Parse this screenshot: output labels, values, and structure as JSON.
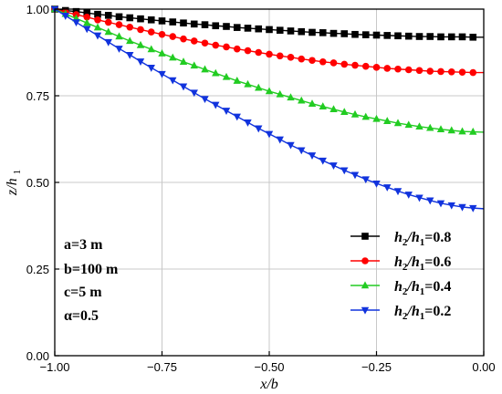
{
  "chart_data": {
    "type": "line",
    "xlabel": "x/b",
    "ylabel": "z/h1",
    "xlim": [
      -1.0,
      0.0
    ],
    "ylim": [
      0.0,
      1.0
    ],
    "x_ticks": [
      -1.0,
      -0.75,
      -0.5,
      -0.25,
      0.0
    ],
    "x_tick_labels": [
      "−1.00",
      "−0.75",
      "−0.50",
      "−0.25",
      "0.00"
    ],
    "y_ticks": [
      0.0,
      0.25,
      0.5,
      0.75,
      1.0
    ],
    "y_tick_labels": [
      "0.00",
      "0.25",
      "0.50",
      "0.75",
      "1.00"
    ],
    "grid": true,
    "legend_position": "bottom-right",
    "x": [
      -1.0,
      -0.975,
      -0.95,
      -0.925,
      -0.9,
      -0.875,
      -0.85,
      -0.825,
      -0.8,
      -0.775,
      -0.75,
      -0.725,
      -0.7,
      -0.675,
      -0.65,
      -0.625,
      -0.6,
      -0.575,
      -0.55,
      -0.525,
      -0.5,
      -0.475,
      -0.45,
      -0.425,
      -0.4,
      -0.375,
      -0.35,
      -0.325,
      -0.3,
      -0.275,
      -0.25,
      -0.225,
      -0.2,
      -0.175,
      -0.15,
      -0.125,
      -0.1,
      -0.075,
      -0.05,
      -0.025,
      0.0
    ],
    "series": [
      {
        "name": "h2/h1=0.8",
        "color": "#000000",
        "marker": "square",
        "values": [
          1.0,
          0.996,
          0.993,
          0.989,
          0.985,
          0.982,
          0.978,
          0.975,
          0.972,
          0.969,
          0.966,
          0.963,
          0.96,
          0.957,
          0.955,
          0.952,
          0.95,
          0.947,
          0.945,
          0.943,
          0.941,
          0.939,
          0.937,
          0.935,
          0.933,
          0.932,
          0.93,
          0.929,
          0.927,
          0.926,
          0.925,
          0.924,
          0.923,
          0.922,
          0.921,
          0.921,
          0.92,
          0.92,
          0.92,
          0.919,
          0.919
        ]
      },
      {
        "name": "h2/h1=0.6",
        "color": "#ff0000",
        "marker": "circle",
        "values": [
          1.0,
          0.992,
          0.984,
          0.977,
          0.969,
          0.962,
          0.955,
          0.948,
          0.941,
          0.934,
          0.927,
          0.921,
          0.914,
          0.908,
          0.902,
          0.896,
          0.891,
          0.885,
          0.88,
          0.875,
          0.87,
          0.865,
          0.861,
          0.856,
          0.852,
          0.848,
          0.845,
          0.841,
          0.838,
          0.835,
          0.832,
          0.829,
          0.827,
          0.825,
          0.823,
          0.821,
          0.82,
          0.819,
          0.818,
          0.817,
          0.817
        ]
      },
      {
        "name": "h2/h1=0.4",
        "color": "#22cc22",
        "marker": "triangle-up",
        "values": [
          1.0,
          0.986,
          0.973,
          0.96,
          0.947,
          0.934,
          0.921,
          0.908,
          0.896,
          0.884,
          0.872,
          0.86,
          0.848,
          0.837,
          0.826,
          0.815,
          0.804,
          0.793,
          0.783,
          0.773,
          0.763,
          0.754,
          0.745,
          0.736,
          0.727,
          0.719,
          0.711,
          0.703,
          0.696,
          0.689,
          0.683,
          0.677,
          0.671,
          0.666,
          0.661,
          0.657,
          0.653,
          0.65,
          0.647,
          0.646,
          0.645
        ]
      },
      {
        "name": "h2/h1=0.2",
        "color": "#1133dd",
        "marker": "triangle-down",
        "values": [
          1.0,
          0.981,
          0.962,
          0.943,
          0.924,
          0.905,
          0.886,
          0.868,
          0.849,
          0.831,
          0.813,
          0.795,
          0.777,
          0.759,
          0.741,
          0.724,
          0.707,
          0.69,
          0.673,
          0.656,
          0.64,
          0.624,
          0.608,
          0.593,
          0.578,
          0.563,
          0.549,
          0.535,
          0.522,
          0.509,
          0.497,
          0.486,
          0.475,
          0.465,
          0.456,
          0.448,
          0.44,
          0.434,
          0.429,
          0.426,
          0.424
        ]
      }
    ],
    "annotations": [
      "a=3 m",
      "b=100 m",
      "c=5 m",
      "α=0.5"
    ]
  }
}
